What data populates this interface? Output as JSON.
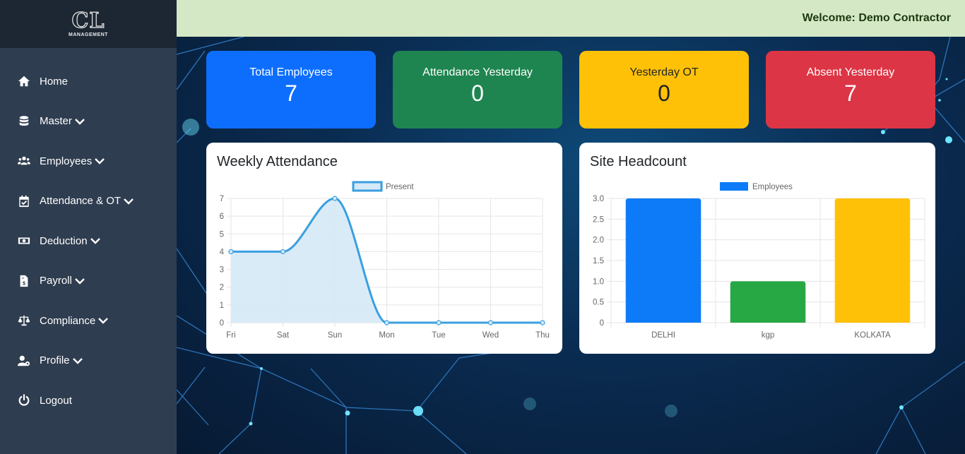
{
  "logo": {
    "mark": "CL",
    "sub": "MANAGEMENT"
  },
  "header": {
    "welcome": "Welcome: Demo Contractor"
  },
  "sidebar": {
    "items": [
      {
        "label": "Home",
        "icon": "home-icon",
        "dropdown": false
      },
      {
        "label": "Master",
        "icon": "database-icon",
        "dropdown": true
      },
      {
        "label": "Employees",
        "icon": "users-icon",
        "dropdown": true
      },
      {
        "label": "Attendance & OT",
        "icon": "calendar-check-icon",
        "dropdown": true
      },
      {
        "label": "Deduction",
        "icon": "money-bill-icon",
        "dropdown": true
      },
      {
        "label": "Payroll",
        "icon": "invoice-dollar-icon",
        "dropdown": true
      },
      {
        "label": "Compliance",
        "icon": "scale-balance-icon",
        "dropdown": true
      },
      {
        "label": "Profile",
        "icon": "user-gear-icon",
        "dropdown": true
      },
      {
        "label": "Logout",
        "icon": "power-icon",
        "dropdown": false
      }
    ]
  },
  "stats": {
    "total_employees": {
      "title": "Total Employees",
      "value": "7",
      "color": "#0d6efd"
    },
    "attendance_yesterday": {
      "title": "Attendance Yesterday",
      "value": "0",
      "color": "#1e8550"
    },
    "yesterday_ot": {
      "title": "Yesterday OT",
      "value": "0",
      "color": "#ffc107"
    },
    "absent_yesterday": {
      "title": "Absent Yesterday",
      "value": "7",
      "color": "#dc3545"
    }
  },
  "weekly": {
    "title": "Weekly Attendance"
  },
  "headcount": {
    "title": "Site Headcount"
  },
  "chart_data": [
    {
      "type": "line",
      "x": [
        "Fri",
        "Sat",
        "Sun",
        "Mon",
        "Tue",
        "Wed",
        "Thu"
      ],
      "series": [
        {
          "name": "Present",
          "values": [
            4,
            4,
            7,
            0,
            0,
            0,
            0
          ],
          "color": "#3a9fe0",
          "fill": "#d6e9f7"
        }
      ],
      "ylim": [
        0,
        7
      ],
      "yticks": [
        "0",
        "1",
        "2",
        "3",
        "4",
        "5",
        "6",
        "7"
      ],
      "legend": "top",
      "grid": true
    },
    {
      "type": "bar",
      "categories": [
        "DELHI",
        "kgp",
        "KOLKATA"
      ],
      "series": [
        {
          "name": "Employees",
          "values": [
            3,
            1,
            3
          ]
        }
      ],
      "bar_colors": [
        "#0d7bf7",
        "#28a745",
        "#ffc107"
      ],
      "legend_color": "#0d7bf7",
      "ylim": [
        0,
        3
      ],
      "yticks": [
        "0",
        "0.5",
        "1.0",
        "1.5",
        "2.0",
        "2.5",
        "3.0"
      ],
      "legend": "top",
      "grid": true
    }
  ]
}
